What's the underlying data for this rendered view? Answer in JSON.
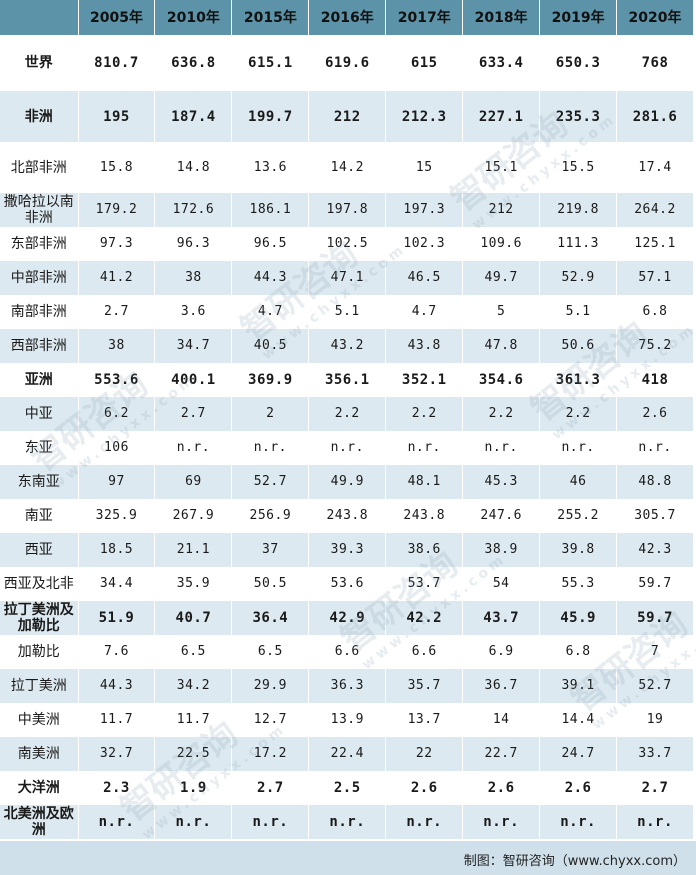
{
  "chart_data": {
    "type": "table",
    "header_corner": "",
    "columns": [
      "2005年",
      "2010年",
      "2015年",
      "2016年",
      "2017年",
      "2018年",
      "2019年",
      "2020年"
    ],
    "rows": [
      {
        "label": "世界",
        "bold": true,
        "values": [
          "810.7",
          "636.8",
          "615.1",
          "619.6",
          "615",
          "633.4",
          "650.3",
          "768"
        ]
      },
      {
        "label": "非洲",
        "bold": true,
        "values": [
          "195",
          "187.4",
          "199.7",
          "212",
          "212.3",
          "227.1",
          "235.3",
          "281.6"
        ]
      },
      {
        "label": "北部非洲",
        "bold": false,
        "values": [
          "15.8",
          "14.8",
          "13.6",
          "14.2",
          "15",
          "15.1",
          "15.5",
          "17.4"
        ]
      },
      {
        "label": "撒哈拉以南非洲",
        "bold": false,
        "values": [
          "179.2",
          "172.6",
          "186.1",
          "197.8",
          "197.3",
          "212",
          "219.8",
          "264.2"
        ]
      },
      {
        "label": "东部非洲",
        "bold": false,
        "values": [
          "97.3",
          "96.3",
          "96.5",
          "102.5",
          "102.3",
          "109.6",
          "111.3",
          "125.1"
        ]
      },
      {
        "label": "中部非洲",
        "bold": false,
        "values": [
          "41.2",
          "38",
          "44.3",
          "47.1",
          "46.5",
          "49.7",
          "52.9",
          "57.1"
        ]
      },
      {
        "label": "南部非洲",
        "bold": false,
        "values": [
          "2.7",
          "3.6",
          "4.7",
          "5.1",
          "4.7",
          "5",
          "5.1",
          "6.8"
        ]
      },
      {
        "label": "西部非洲",
        "bold": false,
        "values": [
          "38",
          "34.7",
          "40.5",
          "43.2",
          "43.8",
          "47.8",
          "50.6",
          "75.2"
        ]
      },
      {
        "label": "亚洲",
        "bold": true,
        "values": [
          "553.6",
          "400.1",
          "369.9",
          "356.1",
          "352.1",
          "354.6",
          "361.3",
          "418"
        ]
      },
      {
        "label": "中亚",
        "bold": false,
        "values": [
          "6.2",
          "2.7",
          "2",
          "2.2",
          "2.2",
          "2.2",
          "2.2",
          "2.6"
        ]
      },
      {
        "label": "东亚",
        "bold": false,
        "values": [
          "106",
          "n.r.",
          "n.r.",
          "n.r.",
          "n.r.",
          "n.r.",
          "n.r.",
          "n.r."
        ]
      },
      {
        "label": "东南亚",
        "bold": false,
        "values": [
          "97",
          "69",
          "52.7",
          "49.9",
          "48.1",
          "45.3",
          "46",
          "48.8"
        ]
      },
      {
        "label": "南亚",
        "bold": false,
        "values": [
          "325.9",
          "267.9",
          "256.9",
          "243.8",
          "243.8",
          "247.6",
          "255.2",
          "305.7"
        ]
      },
      {
        "label": "西亚",
        "bold": false,
        "values": [
          "18.5",
          "21.1",
          "37",
          "39.3",
          "38.6",
          "38.9",
          "39.8",
          "42.3"
        ]
      },
      {
        "label": "西亚及北非",
        "bold": false,
        "values": [
          "34.4",
          "35.9",
          "50.5",
          "53.6",
          "53.7",
          "54",
          "55.3",
          "59.7"
        ]
      },
      {
        "label": "拉丁美洲及加勒比",
        "bold": true,
        "values": [
          "51.9",
          "40.7",
          "36.4",
          "42.9",
          "42.2",
          "43.7",
          "45.9",
          "59.7"
        ]
      },
      {
        "label": "加勒比",
        "bold": false,
        "values": [
          "7.6",
          "6.5",
          "6.5",
          "6.6",
          "6.6",
          "6.9",
          "6.8",
          "7"
        ]
      },
      {
        "label": "拉丁美洲",
        "bold": false,
        "values": [
          "44.3",
          "34.2",
          "29.9",
          "36.3",
          "35.7",
          "36.7",
          "39.1",
          "52.7"
        ]
      },
      {
        "label": "中美洲",
        "bold": false,
        "values": [
          "11.7",
          "11.7",
          "12.7",
          "13.9",
          "13.7",
          "14",
          "14.4",
          "19"
        ]
      },
      {
        "label": "南美洲",
        "bold": false,
        "values": [
          "32.7",
          "22.5",
          "17.2",
          "22.4",
          "22",
          "22.7",
          "24.7",
          "33.7"
        ]
      },
      {
        "label": "大洋洲",
        "bold": true,
        "values": [
          "2.3",
          "1.9",
          "2.7",
          "2.5",
          "2.6",
          "2.6",
          "2.6",
          "2.7"
        ]
      },
      {
        "label": "北美洲及欧洲",
        "bold": true,
        "values": [
          "n.r.",
          "n.r.",
          "n.r.",
          "n.r.",
          "n.r.",
          "n.r.",
          "n.r.",
          "n.r."
        ]
      }
    ]
  },
  "footer": {
    "source": "制图：智研咨询（www.chyxx.com）"
  },
  "watermark": {
    "brand": "智研咨询",
    "site": "www.chyxx.com"
  },
  "colors": {
    "header_bg": "#5c93a8",
    "stripe_bg": "#dde9f0",
    "footer_bg": "#cfe0ea"
  }
}
